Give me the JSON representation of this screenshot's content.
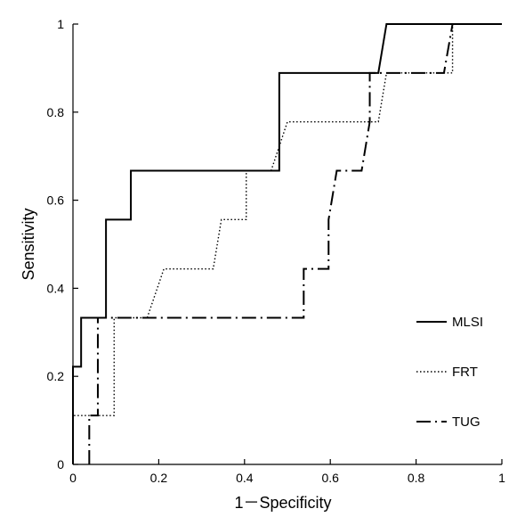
{
  "chart_data": {
    "type": "line",
    "title": "",
    "xlabel": "1－Specificity",
    "ylabel": "Sensitivity",
    "xlim": [
      0,
      1
    ],
    "ylim": [
      0,
      1
    ],
    "x_ticks": [
      "0",
      "0.2",
      "0.4",
      "0.6",
      "0.8",
      "1"
    ],
    "y_ticks": [
      "0",
      "0.2",
      "0.4",
      "0.6",
      "0.8",
      "1"
    ],
    "grid": false,
    "legend_position": "right",
    "series": [
      {
        "name": "MLSI",
        "style": "solid",
        "x": [
          0,
          0,
          0.019,
          0.019,
          0.077,
          0.077,
          0.135,
          0.135,
          0.481,
          0.481,
          0.712,
          0.731,
          1
        ],
        "y": [
          0,
          0.222,
          0.222,
          0.333,
          0.333,
          0.556,
          0.556,
          0.667,
          0.667,
          0.889,
          0.889,
          1,
          1
        ]
      },
      {
        "name": "FRT",
        "style": "dotted",
        "x": [
          0,
          0,
          0.096,
          0.096,
          0.173,
          0.212,
          0.327,
          0.346,
          0.404,
          0.404,
          0.462,
          0.5,
          0.712,
          0.731,
          0.885,
          0.885,
          1
        ],
        "y": [
          0,
          0.111,
          0.111,
          0.333,
          0.333,
          0.444,
          0.444,
          0.556,
          0.556,
          0.667,
          0.667,
          0.778,
          0.778,
          0.889,
          0.889,
          1,
          1
        ]
      },
      {
        "name": "TUG",
        "style": "dashdot",
        "x": [
          0.038,
          0.038,
          0.058,
          0.058,
          0.538,
          0.538,
          0.596,
          0.596,
          0.615,
          0.673,
          0.692,
          0.692,
          0.865,
          0.885,
          1
        ],
        "y": [
          0,
          0.111,
          0.111,
          0.333,
          0.333,
          0.444,
          0.444,
          0.556,
          0.667,
          0.667,
          0.778,
          0.889,
          0.889,
          1,
          1
        ]
      }
    ]
  }
}
